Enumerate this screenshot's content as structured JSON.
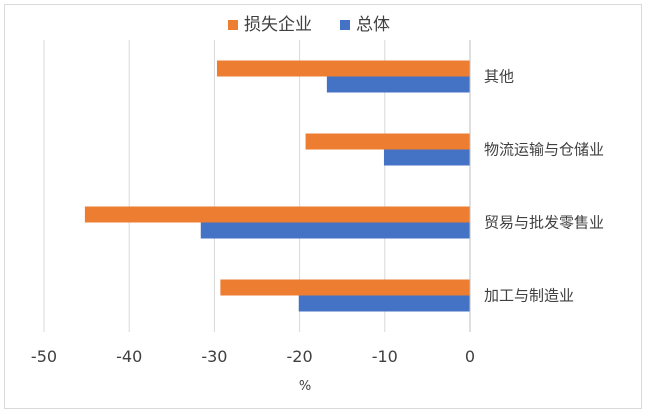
{
  "chart_data": {
    "type": "bar",
    "orientation": "horizontal",
    "categories": [
      "其他",
      "物流运输与仓储业",
      "贸易与批发零售业",
      "加工与制造业"
    ],
    "series": [
      {
        "name": "损失企业",
        "color": "#ED7D31",
        "values": [
          -29.7,
          -19.3,
          -45.2,
          -29.3
        ]
      },
      {
        "name": "总体",
        "color": "#4472C4",
        "values": [
          -16.8,
          -10.1,
          -31.6,
          -20.1
        ]
      }
    ],
    "xlabel": "%",
    "xlim": [
      -50,
      0
    ],
    "xticks": [
      "-50",
      "-40",
      "-30",
      "-20",
      "-10",
      "0"
    ],
    "grid": true,
    "legend_position": "top"
  }
}
